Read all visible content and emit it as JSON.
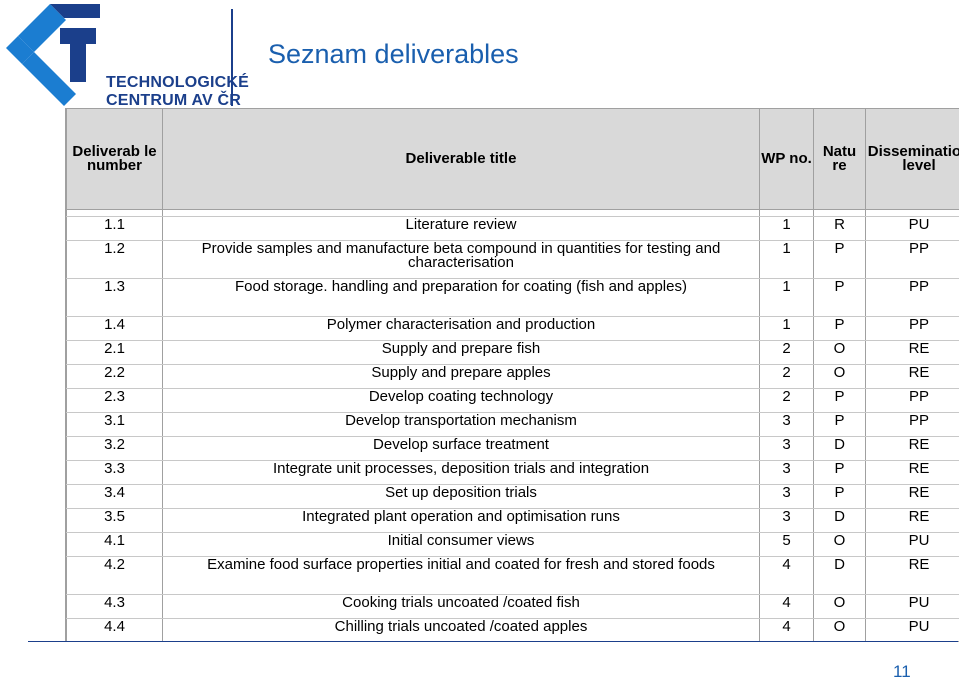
{
  "logo": {
    "line1": "TECHNOLOGICKÉ",
    "line2": "CENTRUM AV ČR",
    "colors": {
      "navy": "#1b3f8b",
      "blue": "#1b7dd1"
    }
  },
  "title": "Seznam deliverables",
  "table": {
    "headers": {
      "number": "Deliverab le number",
      "title": "Deliverable title",
      "wp": "WP no.",
      "nature": "Natu re",
      "dissemination": "Dissemination level"
    },
    "rows": [
      {
        "num": "1.1",
        "title": "Literature review",
        "wp": "1",
        "nature": "R",
        "level": "PU"
      },
      {
        "num": "1.2",
        "title": "Provide samples and manufacture beta compound in quantities for testing and characterisation",
        "wp": "1",
        "nature": "P",
        "level": "PP"
      },
      {
        "num": "1.3",
        "title": "Food storage. handling and preparation for coating (fish and apples)",
        "wp": "1",
        "nature": "P",
        "level": "PP"
      },
      {
        "num": "1.4",
        "title": "Polymer characterisation and production",
        "wp": "1",
        "nature": "P",
        "level": "PP"
      },
      {
        "num": "2.1",
        "title": "Supply and prepare fish",
        "wp": "2",
        "nature": "O",
        "level": "RE"
      },
      {
        "num": "2.2",
        "title": "Supply and prepare apples",
        "wp": "2",
        "nature": "O",
        "level": "RE"
      },
      {
        "num": "2.3",
        "title": "Develop coating technology",
        "wp": "2",
        "nature": "P",
        "level": "PP"
      },
      {
        "num": "3.1",
        "title": "Develop transportation mechanism",
        "wp": "3",
        "nature": "P",
        "level": "PP"
      },
      {
        "num": "3.2",
        "title": "Develop surface treatment",
        "wp": "3",
        "nature": "D",
        "level": "RE"
      },
      {
        "num": "3.3",
        "title": "Integrate unit processes, deposition trials and integration",
        "wp": "3",
        "nature": "P",
        "level": "RE"
      },
      {
        "num": "3.4",
        "title": "Set up deposition trials",
        "wp": "3",
        "nature": "P",
        "level": "RE"
      },
      {
        "num": "3.5",
        "title": "Integrated plant operation and optimisation runs",
        "wp": "3",
        "nature": "D",
        "level": "RE"
      },
      {
        "num": "4.1",
        "title": "Initial consumer views",
        "wp": "5",
        "nature": "O",
        "level": "PU"
      },
      {
        "num": "4.2",
        "title": "Examine food surface properties initial and coated for fresh and stored foods",
        "wp": "4",
        "nature": "D",
        "level": "RE"
      },
      {
        "num": "4.3",
        "title": "Cooking trials uncoated /coated fish",
        "wp": "4",
        "nature": "O",
        "level": "PU"
      },
      {
        "num": "4.4",
        "title": "Chilling trials uncoated /coated apples",
        "wp": "4",
        "nature": "O",
        "level": "PU"
      }
    ]
  },
  "page_number": "11"
}
